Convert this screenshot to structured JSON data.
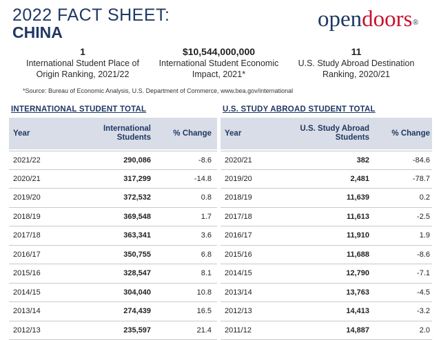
{
  "title": {
    "line1": "2022 FACT SHEET:",
    "line2": "CHINA"
  },
  "logo": {
    "part1": "open",
    "part2": "doors",
    "reg": "®"
  },
  "stats": [
    {
      "value": "1",
      "label": "International Student Place of Origin Ranking, 2021/22"
    },
    {
      "value": "$10,544,000,000",
      "label": "International Student Economic Impact, 2021*"
    },
    {
      "value": "11",
      "label": "U.S. Study Abroad Destination Ranking, 2020/21"
    }
  ],
  "source": "*Source: Bureau of Economic Analysis, U.S. Department of Commerce, www.bea.gov/international",
  "intl": {
    "title": "INTERNATIONAL STUDENT TOTAL",
    "headers": {
      "year": "Year",
      "count": "International Students",
      "change": "% Change"
    },
    "rows": [
      {
        "year": "2021/22",
        "count": "290,086",
        "change": "-8.6"
      },
      {
        "year": "2020/21",
        "count": "317,299",
        "change": "-14.8"
      },
      {
        "year": "2019/20",
        "count": "372,532",
        "change": "0.8"
      },
      {
        "year": "2018/19",
        "count": "369,548",
        "change": "1.7"
      },
      {
        "year": "2017/18",
        "count": "363,341",
        "change": "3.6"
      },
      {
        "year": "2016/17",
        "count": "350,755",
        "change": "6.8"
      },
      {
        "year": "2015/16",
        "count": "328,547",
        "change": "8.1"
      },
      {
        "year": "2014/15",
        "count": "304,040",
        "change": "10.8"
      },
      {
        "year": "2013/14",
        "count": "274,439",
        "change": "16.5"
      },
      {
        "year": "2012/13",
        "count": "235,597",
        "change": "21.4"
      }
    ]
  },
  "abroad": {
    "title": "U.S. STUDY ABROAD STUDENT TOTAL",
    "headers": {
      "year": "Year",
      "count": "U.S. Study Abroad Students",
      "change": "% Change"
    },
    "rows": [
      {
        "year": "2020/21",
        "count": "382",
        "change": "-84.6"
      },
      {
        "year": "2019/20",
        "count": "2,481",
        "change": "-78.7"
      },
      {
        "year": "2018/19",
        "count": "11,639",
        "change": "0.2"
      },
      {
        "year": "2017/18",
        "count": "11,613",
        "change": "-2.5"
      },
      {
        "year": "2016/17",
        "count": "11,910",
        "change": "1.9"
      },
      {
        "year": "2015/16",
        "count": "11,688",
        "change": "-8.6"
      },
      {
        "year": "2014/15",
        "count": "12,790",
        "change": "-7.1"
      },
      {
        "year": "2013/14",
        "count": "13,763",
        "change": "-4.5"
      },
      {
        "year": "2012/13",
        "count": "14,413",
        "change": "-3.2"
      },
      {
        "year": "2011/12",
        "count": "14,887",
        "change": "2.0"
      }
    ]
  }
}
